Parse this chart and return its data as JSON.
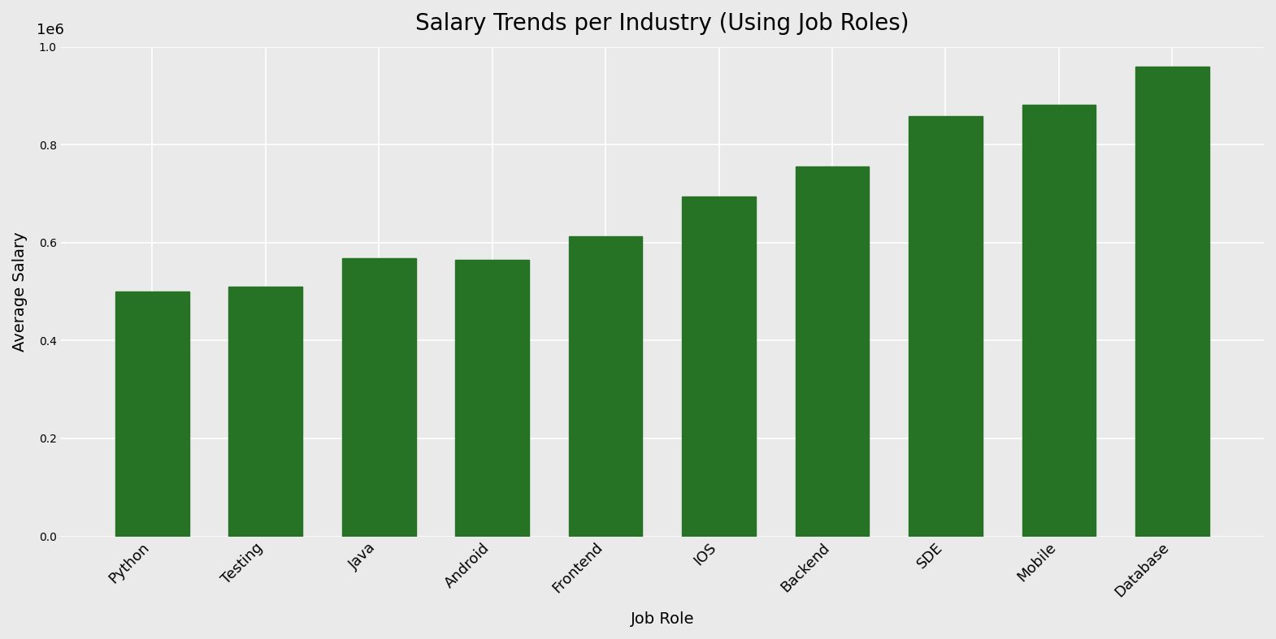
{
  "title": "Salary Trends per Industry (Using Job Roles)",
  "xlabel": "Job Role",
  "ylabel": "Average Salary",
  "categories": [
    "Python",
    "Testing",
    "Java",
    "Android",
    "Frontend",
    "IOS",
    "Backend",
    "SDE",
    "Mobile",
    "Database"
  ],
  "values": [
    500000,
    510000,
    568000,
    565000,
    613000,
    695000,
    755000,
    858000,
    882000,
    960000
  ],
  "bar_color": "#267326",
  "background_color": "#eaeaea",
  "ylim": [
    0,
    1000000
  ],
  "title_fontsize": 20,
  "label_fontsize": 14,
  "tick_fontsize": 13,
  "grid_color": "#ffffff",
  "bar_width": 0.65
}
